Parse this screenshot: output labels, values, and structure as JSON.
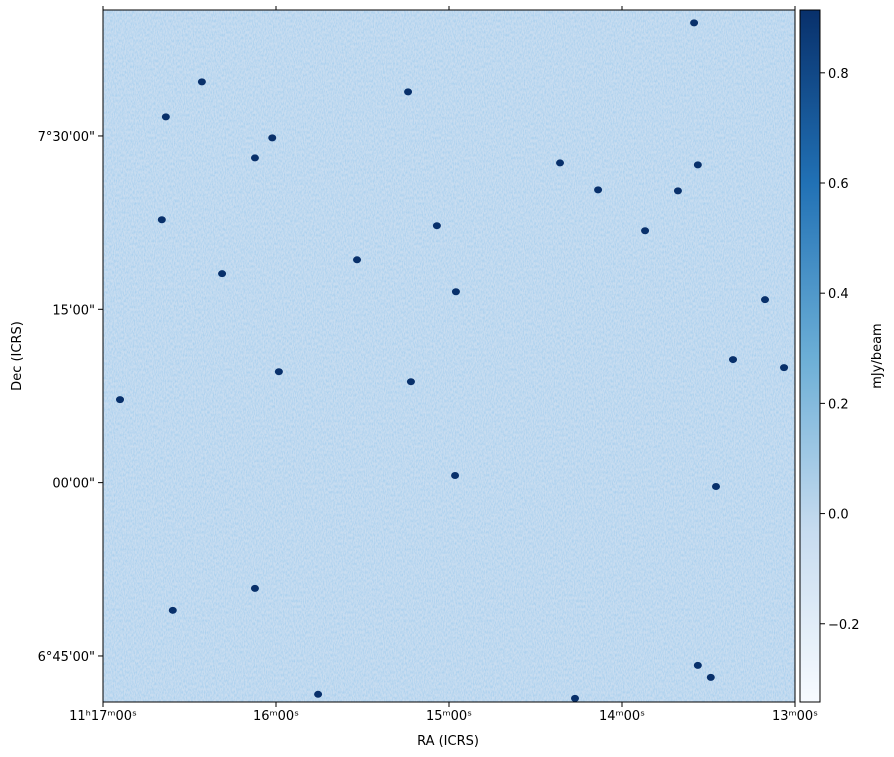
{
  "chart_data": {
    "type": "image",
    "xlabel": "RA (ICRS)",
    "ylabel": "Dec (ICRS)",
    "colorbar_label": "mJy/beam",
    "xlim": [
      40620,
      40380
    ],
    "xticks": [
      {
        "value": 40620,
        "label": "11ʰ17ᵐ00ˢ"
      },
      {
        "value": 40560,
        "label": "16ᵐ00ˢ"
      },
      {
        "value": 40500,
        "label": "15ᵐ00ˢ"
      },
      {
        "value": 40440,
        "label": "14ᵐ00ˢ"
      },
      {
        "value": 40380,
        "label": "13ᵐ00ˢ"
      }
    ],
    "ylim": [
      24061,
      27654
    ],
    "yticks": [
      {
        "value": 27000,
        "label": "7°30'00\""
      },
      {
        "value": 26100,
        "label": "15'00\""
      },
      {
        "value": 25200,
        "label": "00'00\""
      },
      {
        "value": 24300,
        "label": "6°45'00\""
      }
    ],
    "clim": [
      -0.342,
      0.914
    ],
    "cticks": [
      -0.2,
      0.0,
      0.2,
      0.4,
      0.6,
      0.8
    ],
    "cticks_labels": [
      "−0.2",
      "0.0",
      "0.2",
      "0.4",
      "0.6",
      "0.8"
    ],
    "source_color": "#08306b",
    "sources": {
      "x": [
        40585.7,
        40514.2,
        40598.2,
        40567.3,
        40461.5,
        40448.3,
        40413.7,
        40420.6,
        40599.6,
        40531.9,
        40578.7,
        40497.6,
        40390.4,
        40401.5,
        40559.0,
        40383.8,
        40614.1,
        40513.2,
        40497.9,
        40407.4,
        40595.8,
        40567.3,
        40413.7,
        40409.2,
        40545.4,
        40456.3,
        40415.0,
        40504.2,
        40432.0,
        40561.3
      ],
      "y": [
        27281,
        27229,
        27099,
        26886,
        26860,
        26720,
        26850,
        26715,
        26565,
        26357,
        26285,
        26191,
        26150,
        25839,
        25776,
        25797,
        25631,
        25724,
        25237,
        25180,
        24537,
        24651,
        24251,
        24189,
        24101,
        24080,
        27587,
        26534,
        26508,
        26990
      ]
    }
  }
}
